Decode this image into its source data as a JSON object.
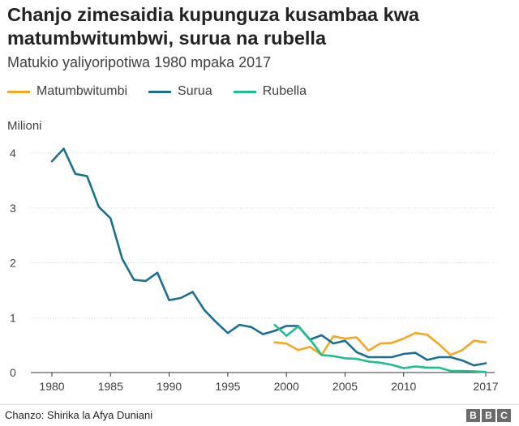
{
  "chart_data": {
    "type": "line",
    "title": "Chanjo zimesaidia kupunguza kusambaa kwa matumbwitumbwi, surua na rubella",
    "subtitle": "Matukio yaliyoripotiwa 1980 mpaka 2017",
    "ylabel": "Milioni",
    "xlabel": "",
    "xlim": [
      1980,
      2017
    ],
    "ylim": [
      0,
      4
    ],
    "x_ticks": [
      "1980",
      "1985",
      "1990",
      "1995",
      "2000",
      "2005",
      "2010",
      "2017"
    ],
    "x_tick_values": [
      1980,
      1985,
      1990,
      1995,
      2000,
      2005,
      2010,
      2017
    ],
    "y_ticks": [
      "0",
      "1",
      "2",
      "3",
      "4"
    ],
    "y_tick_values": [
      0,
      1,
      2,
      3,
      4
    ],
    "series": [
      {
        "name": "Matumbwitumbi",
        "color": "#f5a623",
        "x": [
          1999,
          2000,
          2001,
          2002,
          2003,
          2004,
          2005,
          2006,
          2007,
          2008,
          2009,
          2010,
          2011,
          2012,
          2013,
          2014,
          2015,
          2016,
          2017
        ],
        "values": [
          0.55,
          0.53,
          0.41,
          0.47,
          0.32,
          0.66,
          0.62,
          0.64,
          0.4,
          0.53,
          0.54,
          0.62,
          0.72,
          0.69,
          0.52,
          0.32,
          0.41,
          0.58,
          0.55
        ]
      },
      {
        "name": "Surua",
        "color": "#1c6f8f",
        "x": [
          1980,
          1981,
          1982,
          1983,
          1984,
          1985,
          1986,
          1987,
          1988,
          1989,
          1990,
          1991,
          1992,
          1993,
          1994,
          1995,
          1996,
          1997,
          1998,
          1999,
          2000,
          2001,
          2002,
          2003,
          2004,
          2005,
          2006,
          2007,
          2008,
          2009,
          2010,
          2011,
          2012,
          2013,
          2014,
          2015,
          2016,
          2017
        ],
        "values": [
          3.85,
          4.08,
          3.62,
          3.58,
          3.02,
          2.81,
          2.07,
          1.69,
          1.67,
          1.82,
          1.32,
          1.36,
          1.47,
          1.14,
          0.92,
          0.72,
          0.87,
          0.83,
          0.7,
          0.76,
          0.85,
          0.85,
          0.6,
          0.68,
          0.53,
          0.58,
          0.37,
          0.28,
          0.28,
          0.28,
          0.34,
          0.36,
          0.23,
          0.28,
          0.28,
          0.22,
          0.13,
          0.17
        ]
      },
      {
        "name": "Rubella",
        "color": "#1cbf8f",
        "x": [
          1999,
          2000,
          2001,
          2002,
          2003,
          2004,
          2005,
          2006,
          2007,
          2008,
          2009,
          2010,
          2011,
          2012,
          2013,
          2014,
          2015,
          2016,
          2017
        ],
        "values": [
          0.87,
          0.67,
          0.84,
          0.61,
          0.32,
          0.3,
          0.26,
          0.25,
          0.2,
          0.18,
          0.14,
          0.08,
          0.11,
          0.09,
          0.09,
          0.03,
          0.03,
          0.02,
          0.01
        ]
      }
    ]
  },
  "source_label": "Chanzo: Shirika la Afya Duniani",
  "bbc_logo": [
    "B",
    "B",
    "C"
  ]
}
